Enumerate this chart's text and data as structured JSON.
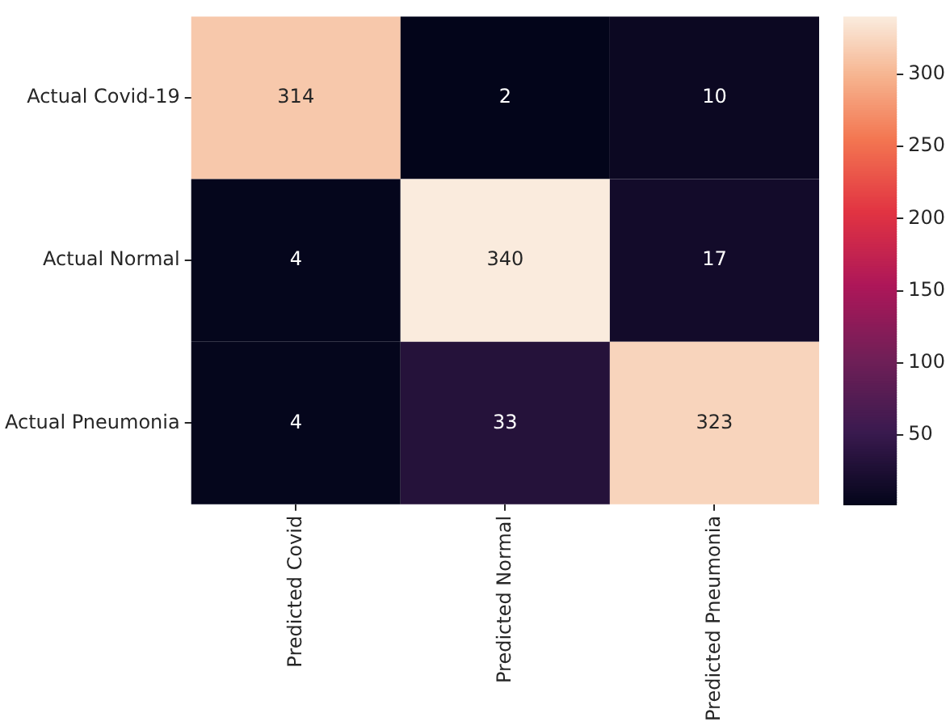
{
  "chart_data": {
    "type": "heatmap",
    "categories": [
      "Predicted Covid",
      "Predicted Normal",
      "Predicted Pneumonia"
    ],
    "y_categories": [
      "Actual Covid-19",
      "Actual Normal",
      "Actual Pneumonia"
    ],
    "cells": [
      [
        314,
        2,
        10
      ],
      [
        4,
        340,
        17
      ],
      [
        4,
        33,
        323
      ]
    ],
    "clim": [
      2,
      340
    ],
    "cticks": [
      50,
      100,
      150,
      200,
      250,
      300
    ],
    "data_labels": true
  }
}
